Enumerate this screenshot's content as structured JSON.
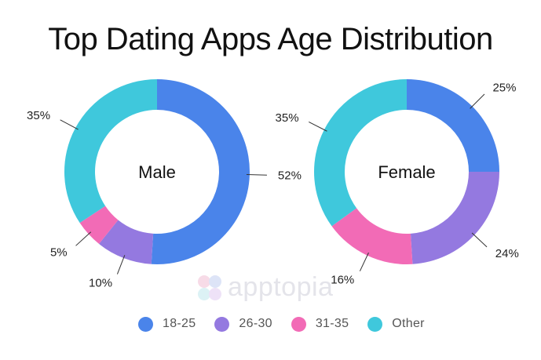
{
  "chart_data": {
    "type": "pie",
    "title": "Top Dating Apps Age Distribution",
    "categories": [
      "18-25",
      "26-30",
      "31-35",
      "Other"
    ],
    "colors": [
      "#4a84ea",
      "#9479e0",
      "#f26bb6",
      "#3fc8dc"
    ],
    "series": [
      {
        "name": "Male",
        "values": [
          52,
          10,
          5,
          35
        ],
        "labels": [
          "52%",
          "10%",
          "5%",
          "35%"
        ]
      },
      {
        "name": "Female",
        "values": [
          25,
          24,
          16,
          35
        ],
        "labels": [
          "25%",
          "24%",
          "16%",
          "35%"
        ]
      }
    ],
    "legend": "bottom"
  },
  "watermark": {
    "text": "apptopia"
  }
}
